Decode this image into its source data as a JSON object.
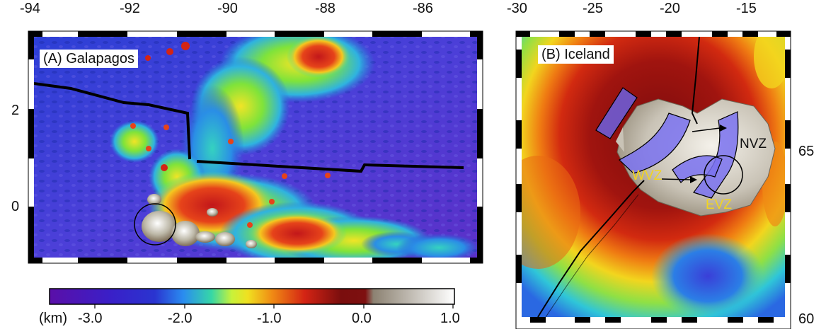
{
  "panels": {
    "galapagos": {
      "label": "(A) Galapagos",
      "x_ticks": [
        "-94",
        "-92",
        "-90",
        "-88",
        "-86"
      ],
      "y_ticks": [
        "2",
        "0"
      ]
    },
    "iceland": {
      "label": "(B) Iceland",
      "x_ticks": [
        "-30",
        "-25",
        "-20",
        "-15"
      ],
      "y_ticks": [
        "65",
        "60"
      ],
      "zones": {
        "nvz": "NVZ",
        "wvz": "WVZ",
        "evz": "EVZ"
      }
    }
  },
  "colorbar": {
    "unit": "(km)",
    "ticks": [
      "-3.0",
      "-2.0",
      "-1.0",
      "0.0",
      "1.0"
    ],
    "colors": [
      "#5a0fa8",
      "#2a34d0",
      "#2a8cf0",
      "#36d7a6",
      "#c8f23a",
      "#f0e020",
      "#f08a14",
      "#d42414",
      "#7a0e0e",
      "#8c8272",
      "#ffffff"
    ]
  }
}
